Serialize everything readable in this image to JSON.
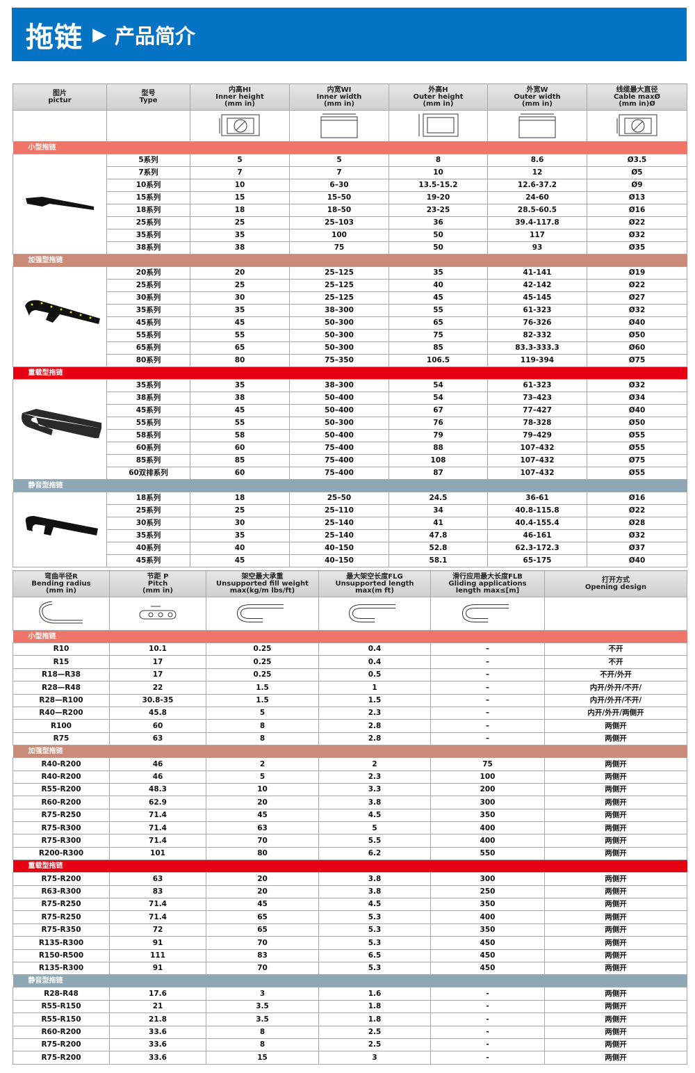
{
  "banner": {
    "title": "拖链",
    "arrow_icon": "play-triangle-icon",
    "subtitle": "产品简介",
    "color": "#0573c3"
  },
  "section_colors": {
    "small": "#ef7568",
    "reinforced": "#c98a78",
    "heavy": "#e60012",
    "silent": "#8fa6b4"
  },
  "table1": {
    "headers": [
      [
        "图片",
        "pictur"
      ],
      [
        "型号",
        "Type"
      ],
      [
        "内高HI",
        "Inner height",
        "(mm in)"
      ],
      [
        "内宽WI",
        "Inner width",
        "(mm in)"
      ],
      [
        "外高H",
        "Outer height",
        "(mm in)"
      ],
      [
        "外宽W",
        "Outer width",
        "(mm in)"
      ],
      [
        "线缆最大直径",
        "Cable maxØ",
        "(mm in)Ø"
      ]
    ],
    "sections": [
      {
        "key": "small",
        "label": "小型拖链",
        "rows": [
          [
            "5系列",
            "5",
            "5",
            "8",
            "8.6",
            "Ø3.5"
          ],
          [
            "7系列",
            "7",
            "7",
            "10",
            "12",
            "Ø5"
          ],
          [
            "10系列",
            "10",
            "6–30",
            "13.5-15.2",
            "12.6-37.2",
            "Ø9"
          ],
          [
            "15系列",
            "15",
            "15–50",
            "19-20",
            "24-60",
            "Ø13"
          ],
          [
            "18系列",
            "18",
            "18–50",
            "23-25",
            "28.5-60.5",
            "Ø16"
          ],
          [
            "25系列",
            "25",
            "25–103",
            "36",
            "39.4-117.8",
            "Ø22"
          ],
          [
            "35系列",
            "35",
            "100",
            "50",
            "117",
            "Ø32"
          ],
          [
            "38系列",
            "38",
            "75",
            "50",
            "93",
            "Ø35"
          ]
        ]
      },
      {
        "key": "reinforced",
        "label": "加强型拖链",
        "rows": [
          [
            "20系列",
            "20",
            "25–125",
            "35",
            "41-141",
            "Ø19"
          ],
          [
            "25系列",
            "25",
            "25–125",
            "40",
            "42-142",
            "Ø22"
          ],
          [
            "30系列",
            "30",
            "25–125",
            "45",
            "45-145",
            "Ø27"
          ],
          [
            "35系列",
            "35",
            "38–300",
            "55",
            "61-323",
            "Ø32"
          ],
          [
            "45系列",
            "45",
            "50–300",
            "65",
            "76-326",
            "Ø40"
          ],
          [
            "55系列",
            "55",
            "50–300",
            "75",
            "82-332",
            "Ø50"
          ],
          [
            "65系列",
            "65",
            "50–300",
            "85",
            "83.3-333.3",
            "Ø60"
          ],
          [
            "80系列",
            "80",
            "75–350",
            "106.5",
            "119-394",
            "Ø75"
          ]
        ]
      },
      {
        "key": "heavy",
        "label": "重载型拖链",
        "rows": [
          [
            "35系列",
            "35",
            "38–300",
            "54",
            "61-323",
            "Ø32"
          ],
          [
            "38系列",
            "38",
            "50–400",
            "54",
            "73–423",
            "Ø34"
          ],
          [
            "45系列",
            "45",
            "50–400",
            "67",
            "77–427",
            "Ø40"
          ],
          [
            "55系列",
            "55",
            "50–300",
            "76",
            "78-328",
            "Ø50"
          ],
          [
            "58系列",
            "58",
            "50–400",
            "79",
            "79–429",
            "Ø55"
          ],
          [
            "60系列",
            "60",
            "75–400",
            "88",
            "107–432",
            "Ø55"
          ],
          [
            "85系列",
            "85",
            "75–400",
            "108",
            "107–432",
            "Ø75"
          ],
          [
            "60双排系列",
            "60",
            "75–400",
            "87",
            "107–432",
            "Ø55"
          ]
        ]
      },
      {
        "key": "silent",
        "label": "静音型拖链",
        "rows": [
          [
            "18系列",
            "18",
            "25–50",
            "24.5",
            "36-61",
            "Ø16"
          ],
          [
            "25系列",
            "25",
            "25–110",
            "34",
            "40.8-115.8",
            "Ø22"
          ],
          [
            "30系列",
            "30",
            "25–140",
            "41",
            "40.4-155.4",
            "Ø28"
          ],
          [
            "35系列",
            "35",
            "25–140",
            "47.8",
            "46-161",
            "Ø32"
          ],
          [
            "40系列",
            "40",
            "40–150",
            "52.8",
            "62.3-172.3",
            "Ø37"
          ],
          [
            "45系列",
            "45",
            "40–150",
            "58.1",
            "65-175",
            "Ø40"
          ]
        ]
      }
    ]
  },
  "table2": {
    "headers": [
      [
        "弯曲半径R",
        "Bending radius",
        "(mm in)"
      ],
      [
        "节距 P",
        "Pitch",
        "(mm in)"
      ],
      [
        "架空最大承重",
        "Unsupported fill weight",
        "max(kg/m lbs/ft)"
      ],
      [
        "最大架空长度FLG",
        "Unsupported length",
        "max(m ft)"
      ],
      [
        "滑行应用最大长度FLB",
        "Gliding applications",
        "length max≤[m]"
      ],
      [
        "打开方式",
        "Opening design"
      ]
    ],
    "sections": [
      {
        "key": "small",
        "label": "小型拖链",
        "rows": [
          [
            "R10",
            "10.1",
            "0.25",
            "0.4",
            "–",
            "不开"
          ],
          [
            "R15",
            "17",
            "0.25",
            "0.4",
            "–",
            "不开"
          ],
          [
            "R18—R38",
            "17",
            "0.25",
            "0.5",
            "–",
            "不开/外开"
          ],
          [
            "R28—R48",
            "22",
            "1.5",
            "1",
            "–",
            "内开/外开/不开/"
          ],
          [
            "R28—R100",
            "30.8-35",
            "1.5",
            "1.5",
            "–",
            "内开/外开/不开/"
          ],
          [
            "R40—R200",
            "45.8",
            "5",
            "2.3",
            "–",
            "内开/外开/两侧开"
          ],
          [
            "R100",
            "60",
            "8",
            "2.8",
            "–",
            "两侧开"
          ],
          [
            "R75",
            "63",
            "8",
            "2.8",
            "–",
            "两侧开"
          ]
        ]
      },
      {
        "key": "reinforced",
        "label": "加强型拖链",
        "rows": [
          [
            "R40-R200",
            "46",
            "2",
            "2",
            "75",
            "两侧开"
          ],
          [
            "R40-R200",
            "46",
            "5",
            "2.3",
            "100",
            "两侧开"
          ],
          [
            "R55-R200",
            "48.3",
            "10",
            "3.3",
            "200",
            "两侧开"
          ],
          [
            "R60-R200",
            "62.9",
            "20",
            "3.8",
            "300",
            "两侧开"
          ],
          [
            "R75-R250",
            "71.4",
            "45",
            "4.5",
            "350",
            "两侧开"
          ],
          [
            "R75-R300",
            "71.4",
            "63",
            "5",
            "400",
            "两侧开"
          ],
          [
            "R75-R300",
            "71.4",
            "70",
            "5.5",
            "400",
            "两侧开"
          ],
          [
            "R200-R300",
            "101",
            "80",
            "6.2",
            "550",
            "两侧开"
          ]
        ]
      },
      {
        "key": "heavy",
        "label": "重载型拖链",
        "rows": [
          [
            "R75-R200",
            "63",
            "20",
            "3.8",
            "300",
            "两侧开"
          ],
          [
            "R63-R300",
            "83",
            "20",
            "3.8",
            "250",
            "两侧开"
          ],
          [
            "R75-R250",
            "71.4",
            "45",
            "4.5",
            "350",
            "两侧开"
          ],
          [
            "R75-R250",
            "71.4",
            "65",
            "5.3",
            "400",
            "两侧开"
          ],
          [
            "R75-R350",
            "72",
            "65",
            "5.3",
            "350",
            "两侧开"
          ],
          [
            "R135-R300",
            "91",
            "70",
            "5.3",
            "450",
            "两侧开"
          ],
          [
            "R150-R500",
            "111",
            "83",
            "6.5",
            "450",
            "两侧开"
          ],
          [
            "R135-R300",
            "91",
            "70",
            "5.3",
            "450",
            "两侧开"
          ]
        ]
      },
      {
        "key": "silent",
        "label": "静音型拖链",
        "rows": [
          [
            "R28-R48",
            "17.6",
            "3",
            "1.6",
            "-",
            "两侧开"
          ],
          [
            "R55-R150",
            "21",
            "3.5",
            "1.8",
            "-",
            "两侧开"
          ],
          [
            "R55-R150",
            "21.8",
            "3.5",
            "1.8",
            "-",
            "两侧开"
          ],
          [
            "R60-R200",
            "33.6",
            "8",
            "2.5",
            "-",
            "两侧开"
          ],
          [
            "R75-R200",
            "33.6",
            "8",
            "2.5",
            "-",
            "两侧开"
          ],
          [
            "R75-R200",
            "33.6",
            "15",
            "3",
            "-",
            "两侧开"
          ]
        ]
      }
    ]
  }
}
